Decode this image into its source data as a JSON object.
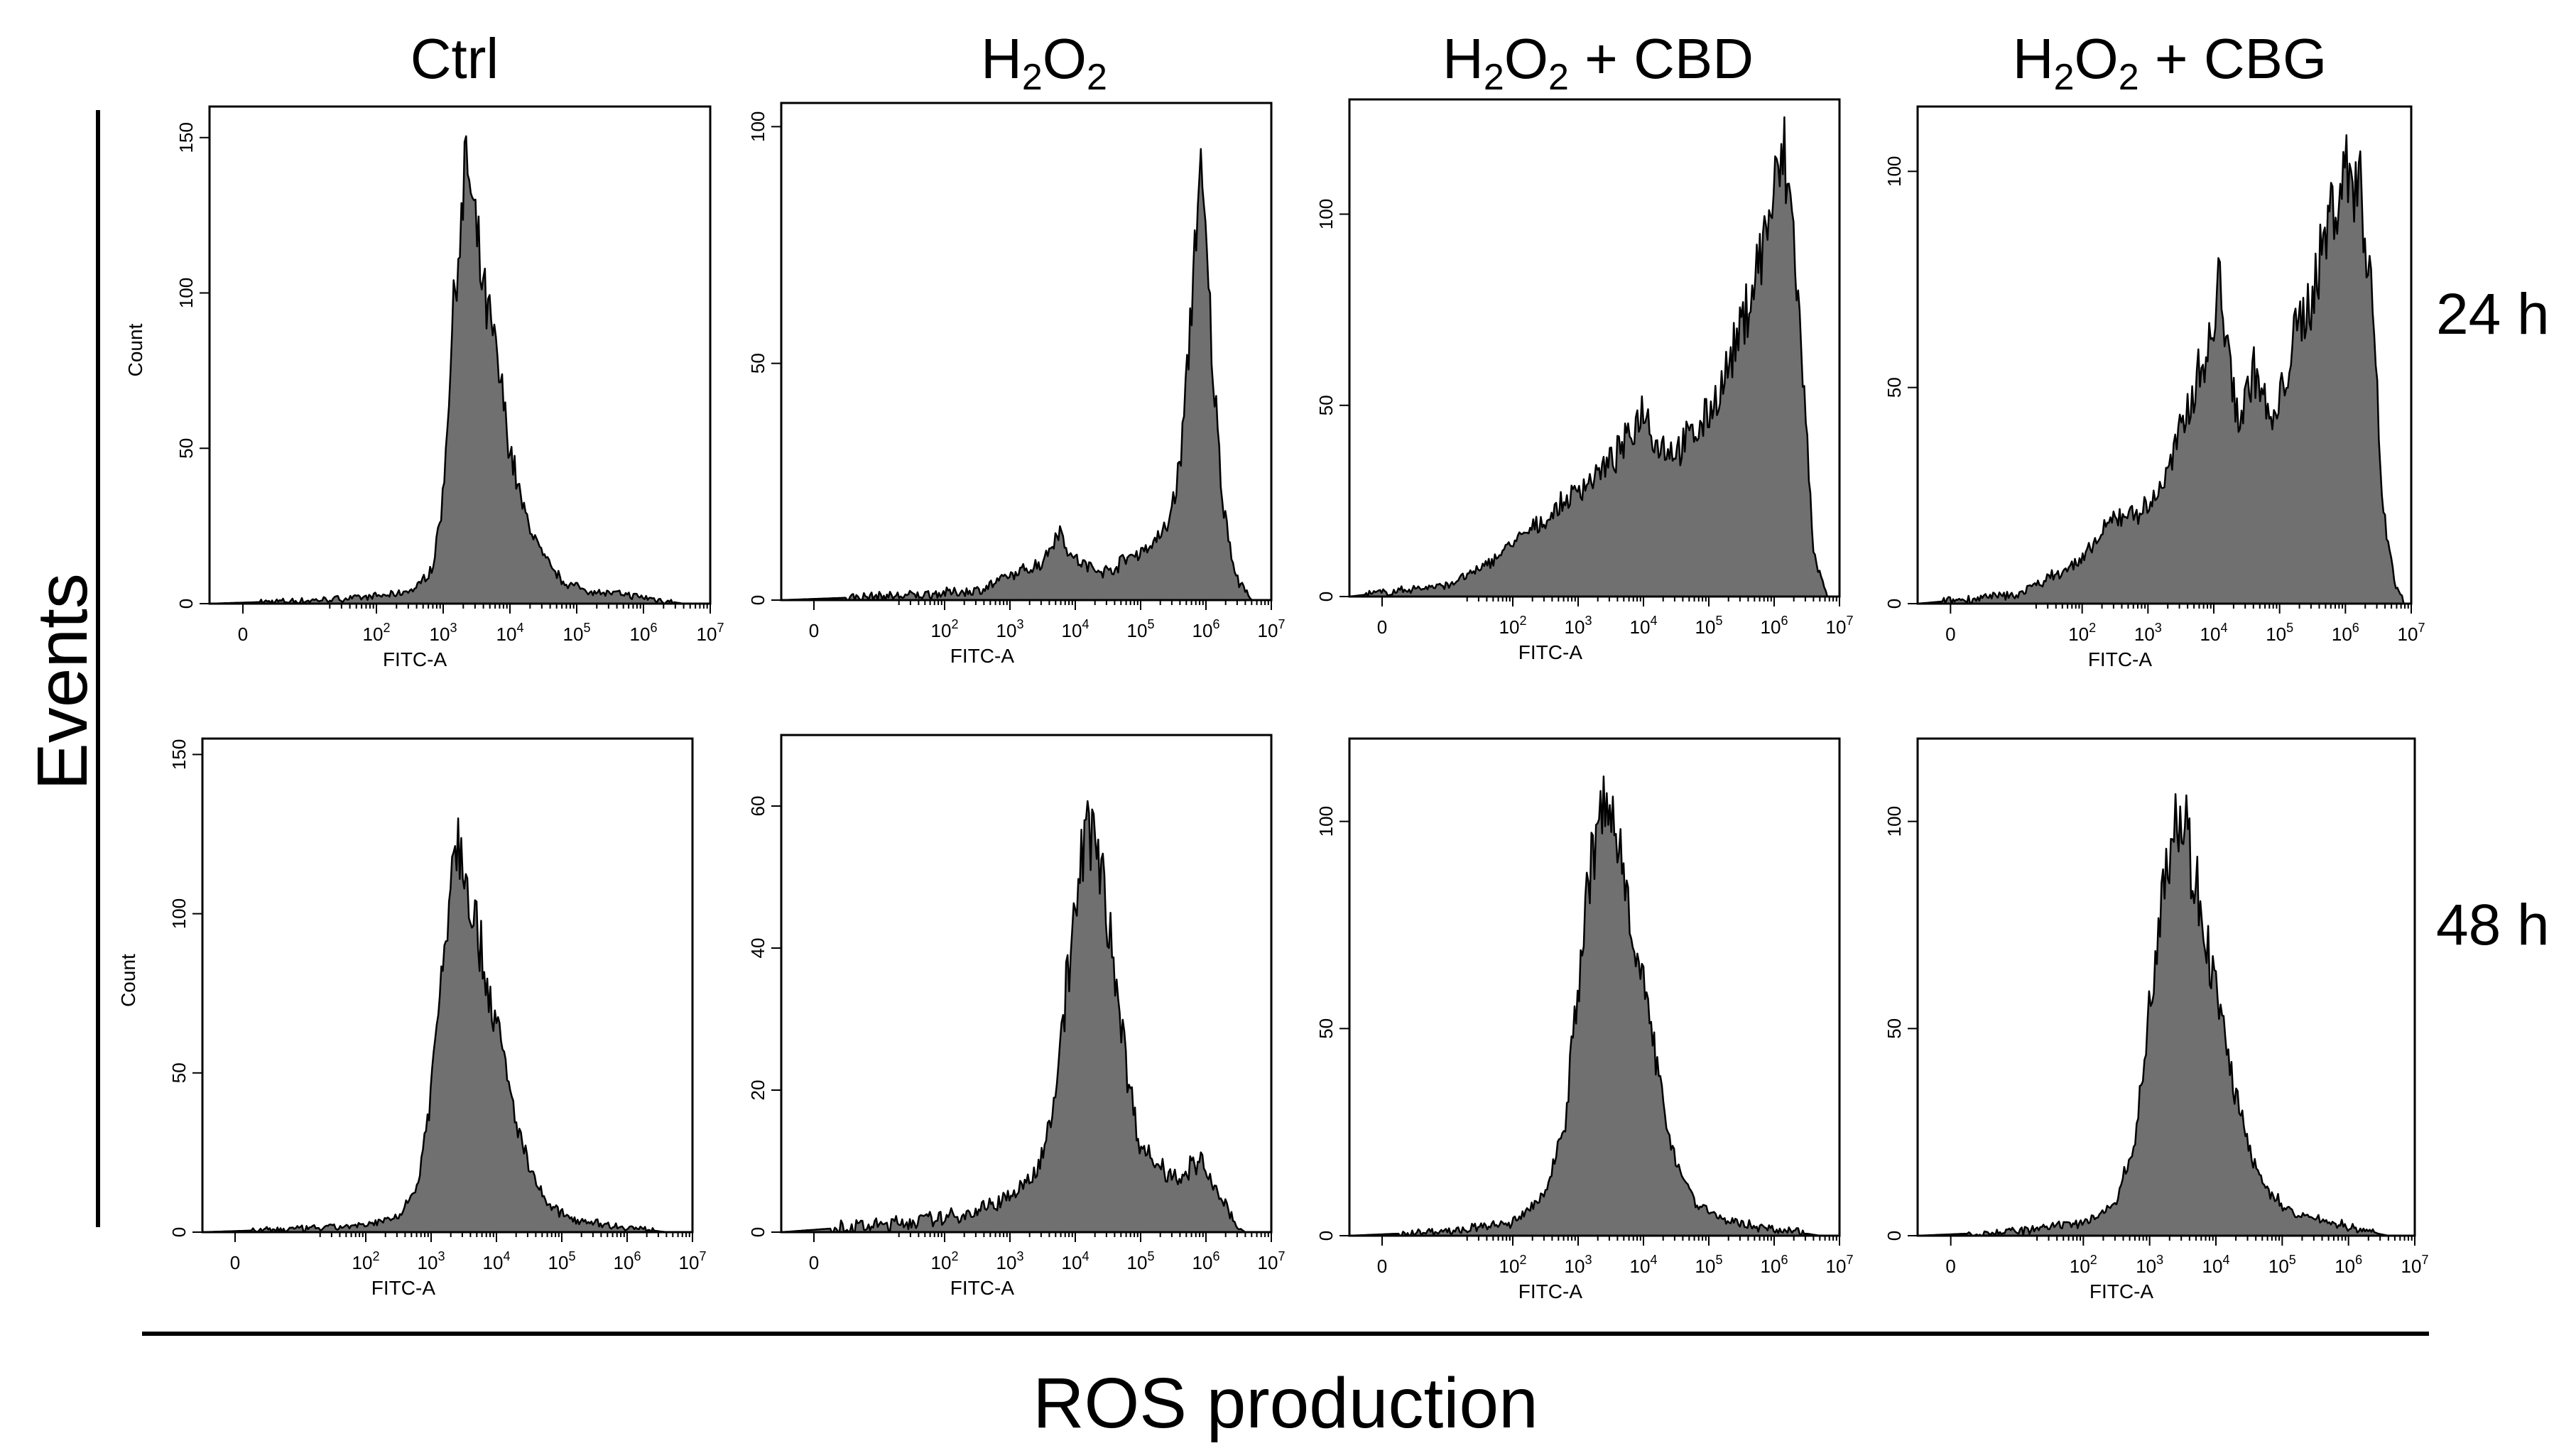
{
  "figure": {
    "y_axis_title": "Events",
    "x_axis_title": "ROS production"
  },
  "chart_data": {
    "type": "histogram-grid",
    "columns": [
      {
        "title": "Ctrl"
      },
      {
        "title": "H2O2",
        "parts": [
          "H",
          "2",
          "O",
          "2"
        ]
      },
      {
        "title": "H2O2 + CBD",
        "parts": [
          "H",
          "2",
          "O",
          "2",
          " + CBD"
        ]
      },
      {
        "title": "H2O2 + CBG",
        "parts": [
          "H",
          "2",
          "O",
          "2",
          " + CBG"
        ]
      }
    ],
    "rows": [
      {
        "label": "24 h"
      },
      {
        "label": "48 h"
      }
    ],
    "xlabel": "FITC-A",
    "x_ticks": [
      {
        "base": "0",
        "exp": "",
        "decade": 0
      },
      {
        "base": "10",
        "exp": "2",
        "decade": 2
      },
      {
        "base": "10",
        "exp": "3",
        "decade": 3
      },
      {
        "base": "10",
        "exp": "4",
        "decade": 4
      },
      {
        "base": "10",
        "exp": "5",
        "decade": 5
      },
      {
        "base": "10",
        "exp": "6",
        "decade": 6
      },
      {
        "base": "10",
        "exp": "7",
        "decade": 7
      }
    ],
    "panels": [
      {
        "row": 0,
        "col": 0,
        "ylabel": "Count",
        "ylim": [
          0,
          160
        ],
        "yticks": [
          0,
          50,
          100,
          150
        ],
        "series": [
          [
            -0.5,
            0
          ],
          [
            1.0,
            1
          ],
          [
            1.8,
            2
          ],
          [
            2.3,
            3
          ],
          [
            2.6,
            5
          ],
          [
            2.85,
            12
          ],
          [
            3.0,
            35
          ],
          [
            3.1,
            75
          ],
          [
            3.2,
            110
          ],
          [
            3.3,
            125
          ],
          [
            3.35,
            148
          ],
          [
            3.42,
            128
          ],
          [
            3.5,
            118
          ],
          [
            3.6,
            100
          ],
          [
            3.75,
            85
          ],
          [
            3.9,
            65
          ],
          [
            4.0,
            50
          ],
          [
            4.2,
            30
          ],
          [
            4.5,
            15
          ],
          [
            4.8,
            7
          ],
          [
            5.2,
            4
          ],
          [
            5.7,
            3
          ],
          [
            6.0,
            2
          ],
          [
            6.3,
            1
          ],
          [
            6.6,
            0
          ]
        ]
      },
      {
        "row": 0,
        "col": 1,
        "ylabel": "",
        "ylim": [
          0,
          105
        ],
        "yticks": [
          0,
          50,
          100
        ],
        "series": [
          [
            -0.5,
            0
          ],
          [
            1.5,
            1
          ],
          [
            2.5,
            2
          ],
          [
            3.0,
            5
          ],
          [
            3.5,
            8
          ],
          [
            3.75,
            15
          ],
          [
            3.95,
            9
          ],
          [
            4.2,
            7
          ],
          [
            4.5,
            6
          ],
          [
            4.8,
            9
          ],
          [
            5.1,
            11
          ],
          [
            5.4,
            15
          ],
          [
            5.6,
            28
          ],
          [
            5.75,
            55
          ],
          [
            5.85,
            82
          ],
          [
            5.92,
            87
          ],
          [
            6.0,
            75
          ],
          [
            6.1,
            50
          ],
          [
            6.25,
            22
          ],
          [
            6.45,
            5
          ],
          [
            6.7,
            0
          ]
        ]
      },
      {
        "row": 0,
        "col": 2,
        "ylabel": "",
        "ylim": [
          0,
          130
        ],
        "yticks": [
          0,
          50,
          100
        ],
        "series": [
          [
            -0.5,
            0
          ],
          [
            1.0,
            3
          ],
          [
            1.5,
            7
          ],
          [
            2.0,
            14
          ],
          [
            2.5,
            20
          ],
          [
            3.0,
            28
          ],
          [
            3.5,
            35
          ],
          [
            3.8,
            42
          ],
          [
            4.0,
            50
          ],
          [
            4.2,
            40
          ],
          [
            4.5,
            38
          ],
          [
            4.9,
            45
          ],
          [
            5.2,
            55
          ],
          [
            5.5,
            70
          ],
          [
            5.8,
            90
          ],
          [
            6.0,
            105
          ],
          [
            6.15,
            115
          ],
          [
            6.3,
            95
          ],
          [
            6.45,
            55
          ],
          [
            6.6,
            12
          ],
          [
            6.8,
            0
          ]
        ]
      },
      {
        "row": 0,
        "col": 3,
        "ylabel": "",
        "ylim": [
          0,
          115
        ],
        "yticks": [
          0,
          50,
          100
        ],
        "series": [
          [
            -0.5,
            0
          ],
          [
            1.0,
            2
          ],
          [
            2.0,
            10
          ],
          [
            2.5,
            20
          ],
          [
            3.0,
            22
          ],
          [
            3.3,
            30
          ],
          [
            3.5,
            40
          ],
          [
            3.8,
            55
          ],
          [
            4.0,
            62
          ],
          [
            4.1,
            78
          ],
          [
            4.2,
            58
          ],
          [
            4.4,
            42
          ],
          [
            4.6,
            55
          ],
          [
            4.9,
            40
          ],
          [
            5.2,
            60
          ],
          [
            5.5,
            72
          ],
          [
            5.8,
            92
          ],
          [
            6.0,
            100
          ],
          [
            6.2,
            98
          ],
          [
            6.4,
            75
          ],
          [
            6.55,
            25
          ],
          [
            6.75,
            5
          ],
          [
            6.9,
            0
          ]
        ]
      },
      {
        "row": 1,
        "col": 0,
        "ylabel": "Count",
        "ylim": [
          0,
          155
        ],
        "yticks": [
          0,
          50,
          100,
          150
        ],
        "series": [
          [
            -0.5,
            0
          ],
          [
            1.0,
            1
          ],
          [
            2.0,
            2
          ],
          [
            2.5,
            5
          ],
          [
            2.8,
            15
          ],
          [
            3.0,
            45
          ],
          [
            3.2,
            90
          ],
          [
            3.35,
            125
          ],
          [
            3.5,
            120
          ],
          [
            3.7,
            95
          ],
          [
            3.9,
            75
          ],
          [
            4.1,
            55
          ],
          [
            4.3,
            35
          ],
          [
            4.5,
            20
          ],
          [
            4.8,
            8
          ],
          [
            5.2,
            4
          ],
          [
            5.8,
            2
          ],
          [
            6.2,
            1
          ],
          [
            6.6,
            0
          ]
        ]
      },
      {
        "row": 1,
        "col": 1,
        "ylabel": "",
        "ylim": [
          0,
          70
        ],
        "yticks": [
          0,
          20,
          40,
          60
        ],
        "series": [
          [
            -0.5,
            0
          ],
          [
            1.0,
            1
          ],
          [
            2.0,
            2
          ],
          [
            2.5,
            3
          ],
          [
            3.0,
            5
          ],
          [
            3.4,
            8
          ],
          [
            3.7,
            20
          ],
          [
            3.9,
            38
          ],
          [
            4.1,
            52
          ],
          [
            4.25,
            58
          ],
          [
            4.4,
            50
          ],
          [
            4.6,
            38
          ],
          [
            4.8,
            22
          ],
          [
            5.0,
            12
          ],
          [
            5.3,
            9
          ],
          [
            5.6,
            8
          ],
          [
            5.9,
            10
          ],
          [
            6.2,
            5
          ],
          [
            6.45,
            1
          ],
          [
            6.6,
            0
          ]
        ]
      },
      {
        "row": 1,
        "col": 2,
        "ylabel": "",
        "ylim": [
          0,
          120
        ],
        "yticks": [
          0,
          50,
          100
        ],
        "series": [
          [
            -0.5,
            0
          ],
          [
            1.0,
            1
          ],
          [
            2.0,
            3
          ],
          [
            2.5,
            10
          ],
          [
            2.8,
            28
          ],
          [
            3.0,
            60
          ],
          [
            3.2,
            90
          ],
          [
            3.4,
            103
          ],
          [
            3.55,
            100
          ],
          [
            3.7,
            88
          ],
          [
            3.9,
            70
          ],
          [
            4.1,
            50
          ],
          [
            4.3,
            32
          ],
          [
            4.5,
            18
          ],
          [
            4.8,
            8
          ],
          [
            5.2,
            4
          ],
          [
            5.8,
            2
          ],
          [
            6.3,
            1
          ],
          [
            6.7,
            0
          ]
        ]
      },
      {
        "row": 1,
        "col": 3,
        "ylabel": "",
        "ylim": [
          0,
          120
        ],
        "yticks": [
          0,
          50,
          100
        ],
        "series": [
          [
            -0.5,
            0
          ],
          [
            1.0,
            1
          ],
          [
            2.0,
            3
          ],
          [
            2.5,
            8
          ],
          [
            2.8,
            25
          ],
          [
            3.0,
            55
          ],
          [
            3.2,
            88
          ],
          [
            3.4,
            102
          ],
          [
            3.55,
            98
          ],
          [
            3.7,
            85
          ],
          [
            3.9,
            68
          ],
          [
            4.1,
            50
          ],
          [
            4.3,
            34
          ],
          [
            4.5,
            20
          ],
          [
            4.8,
            10
          ],
          [
            5.2,
            5
          ],
          [
            5.8,
            3
          ],
          [
            6.3,
            1
          ],
          [
            6.6,
            0
          ]
        ]
      }
    ]
  }
}
